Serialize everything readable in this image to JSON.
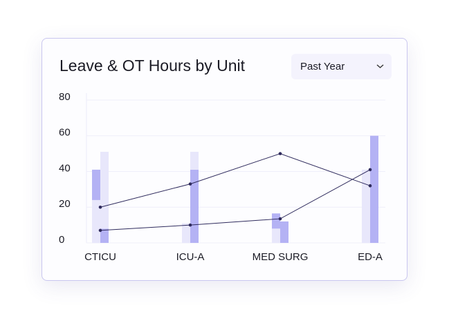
{
  "controls": {
    "period": "Past Year"
  },
  "chart_data": {
    "type": "combo",
    "title": "Leave & OT Hours by Unit",
    "categories": [
      "CTICU",
      "ICU-A",
      "MED SURG",
      "ED-A"
    ],
    "series": [
      {
        "type": "bar",
        "stack": "left",
        "color": "#e8e7fb",
        "values": [
          24,
          11,
          8,
          41
        ]
      },
      {
        "type": "bar",
        "stack": "left",
        "color": "#b4b2f4",
        "values": [
          17,
          0,
          8.5,
          0
        ]
      },
      {
        "type": "bar",
        "stack": "right",
        "color": "#b4b2f4",
        "values": [
          8,
          41,
          12,
          60
        ]
      },
      {
        "type": "bar",
        "stack": "right",
        "color": "#e8e7fb",
        "values": [
          43,
          10,
          0,
          0
        ]
      },
      {
        "type": "line",
        "color": "#2e2a5c",
        "values": [
          20,
          33,
          50,
          32
        ]
      },
      {
        "type": "line",
        "color": "#2e2a5c",
        "values": [
          7,
          10,
          13.5,
          41
        ]
      }
    ],
    "ylim": [
      0,
      80
    ],
    "yticks": [
      0,
      20,
      40,
      60,
      80
    ],
    "grid": true
  }
}
